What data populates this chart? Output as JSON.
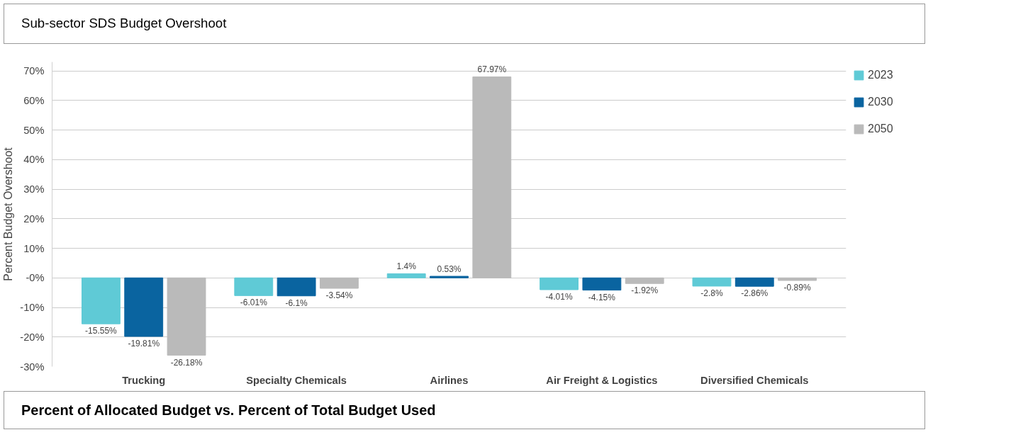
{
  "chart_data": {
    "type": "bar",
    "title": "Sub-sector SDS Budget Overshoot",
    "ylabel": "Percent Budget Overshoot",
    "categories": [
      "Trucking",
      "Specialty Chemicals",
      "Airlines",
      "Air Freight & Logistics",
      "Diversified Chemicals"
    ],
    "series": [
      {
        "name": "2023",
        "color": "#5fcad6",
        "values": [
          -15.55,
          -6.01,
          1.4,
          -4.01,
          -2.8
        ],
        "value_labels": [
          "-15.55%",
          "-6.01%",
          "1.4%",
          "-4.01%",
          "-2.8%"
        ]
      },
      {
        "name": "2030",
        "color": "#0a64a0",
        "values": [
          -19.81,
          -6.1,
          0.53,
          -4.15,
          -2.86
        ],
        "value_labels": [
          "-19.81%",
          "-6.1%",
          "0.53%",
          "-4.15%",
          "-2.86%"
        ]
      },
      {
        "name": "2050",
        "color": "#bababa",
        "values": [
          -26.18,
          -3.54,
          67.97,
          -1.92,
          -0.89
        ],
        "value_labels": [
          "-26.18%",
          "-3.54%",
          "67.97%",
          "-1.92%",
          "-0.89%"
        ]
      }
    ],
    "ylim": [
      -30,
      73
    ],
    "yticks": [
      {
        "value": -30,
        "label": "-30%"
      },
      {
        "value": -20,
        "label": "-20%"
      },
      {
        "value": -10,
        "label": "-10%"
      },
      {
        "value": 0,
        "label": "-0%"
      },
      {
        "value": 10,
        "label": "10%"
      },
      {
        "value": 20,
        "label": "20%"
      },
      {
        "value": 30,
        "label": "30%"
      },
      {
        "value": 40,
        "label": "40%"
      },
      {
        "value": 50,
        "label": "50%"
      },
      {
        "value": 60,
        "label": "60%"
      },
      {
        "value": 70,
        "label": "70%"
      }
    ],
    "grid": "y",
    "legend": "right",
    "annotations": [
      "Percent of Allocated Budget vs. Percent of Total Budget Used"
    ]
  }
}
